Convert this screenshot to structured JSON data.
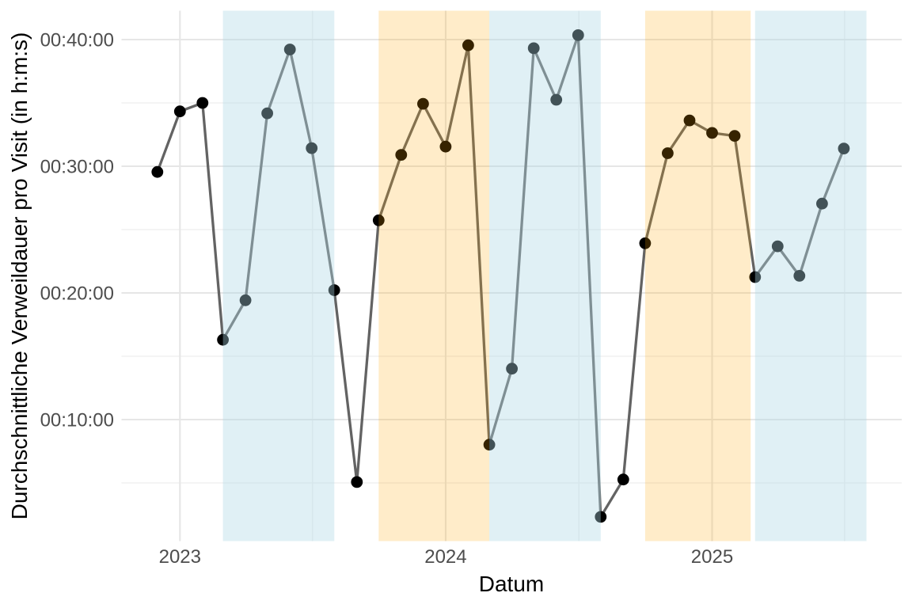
{
  "chart_data": {
    "type": "line",
    "title": "",
    "xlabel": "Datum",
    "ylabel": "Durchschnittliche Verweildauer pro Visit (in h:m:s)",
    "legend": "none",
    "grid": true,
    "x_ticks": [
      {
        "label": "2023",
        "date": "2023-01-01"
      },
      {
        "label": "2024",
        "date": "2024-01-01"
      },
      {
        "label": "2025",
        "date": "2025-01-01"
      }
    ],
    "x_minor_ticks": [
      "2023-07-02",
      "2024-07-02",
      "2025-07-02"
    ],
    "y_ticks": [
      {
        "label": "00:40:00",
        "seconds": 2400
      },
      {
        "label": "00:30:00",
        "seconds": 1800
      },
      {
        "label": "00:20:00",
        "seconds": 1200
      },
      {
        "label": "00:10:00",
        "seconds": 600
      }
    ],
    "y_minor_ticks": [
      300,
      900,
      1500,
      2100
    ],
    "axis_ranges": {
      "y_seconds": [
        25,
        2537
      ],
      "x_dates": [
        "2022-10-13",
        "2025-09-18"
      ]
    },
    "bands": [
      {
        "kind": "blue",
        "start": "2023-03-01",
        "end": "2023-08-01"
      },
      {
        "kind": "orange",
        "start": "2023-10-01",
        "end": "2024-03-01"
      },
      {
        "kind": "blue",
        "start": "2024-03-01",
        "end": "2024-08-01"
      },
      {
        "kind": "orange",
        "start": "2024-10-01",
        "end": "2025-02-23"
      },
      {
        "kind": "blue",
        "start": "2025-03-01",
        "end": "2025-08-01"
      }
    ],
    "series": [
      {
        "name": "Durchschnittliche Verweildauer pro Visit",
        "points": [
          {
            "date": "2022-12-01",
            "hms": "00:29:33",
            "seconds": 1773
          },
          {
            "date": "2023-01-01",
            "hms": "00:34:20",
            "seconds": 2060
          },
          {
            "date": "2023-02-01",
            "hms": "00:35:00",
            "seconds": 2100
          },
          {
            "date": "2023-03-01",
            "hms": "00:16:18",
            "seconds": 978
          },
          {
            "date": "2023-04-01",
            "hms": "00:19:25",
            "seconds": 1165
          },
          {
            "date": "2023-05-01",
            "hms": "00:34:11",
            "seconds": 2051
          },
          {
            "date": "2023-06-01",
            "hms": "00:39:13",
            "seconds": 2353
          },
          {
            "date": "2023-07-01",
            "hms": "00:31:26",
            "seconds": 1886
          },
          {
            "date": "2023-08-01",
            "hms": "00:20:13",
            "seconds": 1213
          },
          {
            "date": "2023-09-01",
            "hms": "00:05:04",
            "seconds": 304
          },
          {
            "date": "2023-10-01",
            "hms": "00:25:44",
            "seconds": 1544
          },
          {
            "date": "2023-11-01",
            "hms": "00:30:54",
            "seconds": 1854
          },
          {
            "date": "2023-12-01",
            "hms": "00:34:56",
            "seconds": 2096
          },
          {
            "date": "2024-01-01",
            "hms": "00:31:33",
            "seconds": 1893
          },
          {
            "date": "2024-02-01",
            "hms": "00:39:33",
            "seconds": 2373
          },
          {
            "date": "2024-03-01",
            "hms": "00:08:01",
            "seconds": 481
          },
          {
            "date": "2024-04-01",
            "hms": "00:14:01",
            "seconds": 841
          },
          {
            "date": "2024-05-01",
            "hms": "00:39:19",
            "seconds": 2359
          },
          {
            "date": "2024-06-01",
            "hms": "00:35:15",
            "seconds": 2115
          },
          {
            "date": "2024-07-01",
            "hms": "00:40:21",
            "seconds": 2421
          },
          {
            "date": "2024-08-01",
            "hms": "00:02:19",
            "seconds": 139
          },
          {
            "date": "2024-09-01",
            "hms": "00:05:16",
            "seconds": 316
          },
          {
            "date": "2024-10-01",
            "hms": "00:23:55",
            "seconds": 1435
          },
          {
            "date": "2024-11-01",
            "hms": "00:31:02",
            "seconds": 1862
          },
          {
            "date": "2024-12-01",
            "hms": "00:33:37",
            "seconds": 2017
          },
          {
            "date": "2025-01-01",
            "hms": "00:32:38",
            "seconds": 1958
          },
          {
            "date": "2025-02-01",
            "hms": "00:32:24",
            "seconds": 1944
          },
          {
            "date": "2025-03-01",
            "hms": "00:21:15",
            "seconds": 1275
          },
          {
            "date": "2025-04-01",
            "hms": "00:23:41",
            "seconds": 1421
          },
          {
            "date": "2025-05-01",
            "hms": "00:21:21",
            "seconds": 1281
          },
          {
            "date": "2025-06-01",
            "hms": "00:27:03",
            "seconds": 1623
          },
          {
            "date": "2025-07-01",
            "hms": "00:31:24",
            "seconds": 1884
          }
        ]
      }
    ],
    "colors": {
      "background": "#FFFFFF",
      "band_blue": "rgba(173,216,230,0.38)",
      "band_orange": "rgba(255,165,0,0.21)",
      "line": "#636363",
      "point": "#000000",
      "grid_major": "#E6E6E6",
      "grid_minor": "#F0F0F0",
      "tick_label": "#4D4D4D",
      "axis_title": "#000000"
    }
  }
}
